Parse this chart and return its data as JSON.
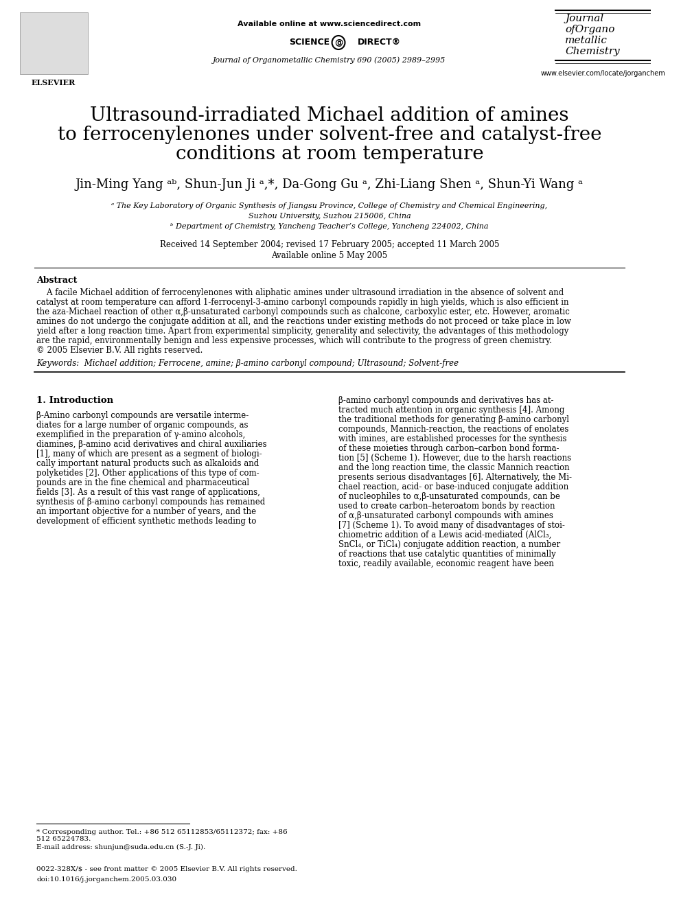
{
  "bg_color": "#ffffff",
  "title_line1": "Ultrasound-irradiated Michael addition of amines",
  "title_line2": "to ferrocenylenones under solvent-free and catalyst-free",
  "title_line3": "conditions at room temperature",
  "authors": "Jin-Ming Yang ᵃᵇ, Shun-Jun Ji ᵃ*, Da-Gong Gu ᵃ, Zhi-Liang Shen ᵃ, Shun-Yi Wang ᵃ",
  "affil_a": "ᵃ The Key Laboratory of Organic Synthesis of Jiangsu Province, College of Chemistry and Chemical Engineering,",
  "affil_a2": "Suzhou University, Suzhou 215006, China",
  "affil_b": "ᵇ Department of Chemistry, Yancheng Teacher’s College, Yancheng 224002, China",
  "received": "Received 14 September 2004; revised 17 February 2005; accepted 11 March 2005",
  "available": "Available online 5 May 2005",
  "header_center": "Available online at www.sciencedirect.com",
  "journal_line": "Journal of Organometallic Chemistry 690 (2005) 2989–2995",
  "journal_name_line1": "Journal",
  "journal_name_line2": "ofOrgano",
  "journal_name_line3": "metallic",
  "journal_name_line4": "Chemistry",
  "elsevier_url": "www.elsevier.com/locate/jorganchem",
  "abstract_title": "Abstract",
  "abstract_text": "    A facile Michael addition of ferrocenylenones with aliphatic amines under ultrasound irradiation in the absence of solvent and\ncatalyst at room temperature can afford 1-ferrocenyl-3-amino carbonyl compounds rapidly in high yields, which is also efficient in\nthe aza-Michael reaction of other α,β-unsaturated carbonyl compounds such as chalcone, carboxylic ester, etc. However, aromatic\namines do not undergo the conjugate addition at all, and the reactions under existing methods do not proceed or take place in low\nyield after a long reaction time. Apart from experimental simplicity, generality and selectivity, the advantages of this methodology\nare the rapid, environmentally benign and less expensive processes, which will contribute to the progress of green chemistry.\n© 2005 Elsevier B.V. All rights reserved.",
  "keywords": "Keywords:  Michael addition; Ferrocene, amine; β-amino carbonyl compound; Ultrasound; Solvent-free",
  "section1_title": "1. Introduction",
  "intro_left": "β-Amino carbonyl compounds are versatile interme-\ndiates for a large number of organic compounds, as\nexemplified in the preparation of γ-amino alcohols,\ndiamines, β-amino acid derivatives and chiral auxiliaries\n[1], many of which are present as a segment of biologi-\ncally important natural products such as alkaloids and\npolyketides [2]. Other applications of this type of com-\npounds are in the fine chemical and pharmaceutical\nfields [3]. As a result of this vast range of applications,\nsynthesis of β-amino carbonyl compounds has remained\nan important objective for a number of years, and the\ndevelopment of efficient synthetic methods leading to",
  "intro_right": "β-amino carbonyl compounds and derivatives has at-\ntracted much attention in organic synthesis [4]. Among\nthe traditional methods for generating β-amino carbonyl\ncompounds, Mannich-reaction, the reactions of enolates\nwith imines, are established processes for the synthesis\nof these moieties through carbon–carbon bond forma-\ntion [5] (Scheme 1). However, due to the harsh reactions\nand the long reaction time, the classic Mannich reaction\npresents serious disadvantages [6]. Alternatively, the Mi-\nchael reaction, acid- or base-induced conjugate addition\nof nucleophiles to α,β-unsaturated compounds, can be\nused to create carbon–heteroatom bonds by reaction\nof α,β-unsaturated carbonyl compounds with amines\n[7] (Scheme 1). To avoid many of disadvantages of stoi-\nchiometric addition of a Lewis acid-mediated (AlCl₃,\nSnCl₄, or TiCl₄) conjugate addition reaction, a number\nof reactions that use catalytic quantities of minimally\ntoxic, readily available, economic reagent have been",
  "footnote_star": "* Corresponding author. Tel.: +86 512 65112853/65112372; fax: +86\n512 65224783.",
  "footnote_email": "E-mail address: shunjun@suda.edu.cn (S.-J. Ji).",
  "footer_issn": "0022-328X/$ - see front matter © 2005 Elsevier B.V. All rights reserved.",
  "footer_doi": "doi:10.1016/j.jorganchem.2005.03.030"
}
